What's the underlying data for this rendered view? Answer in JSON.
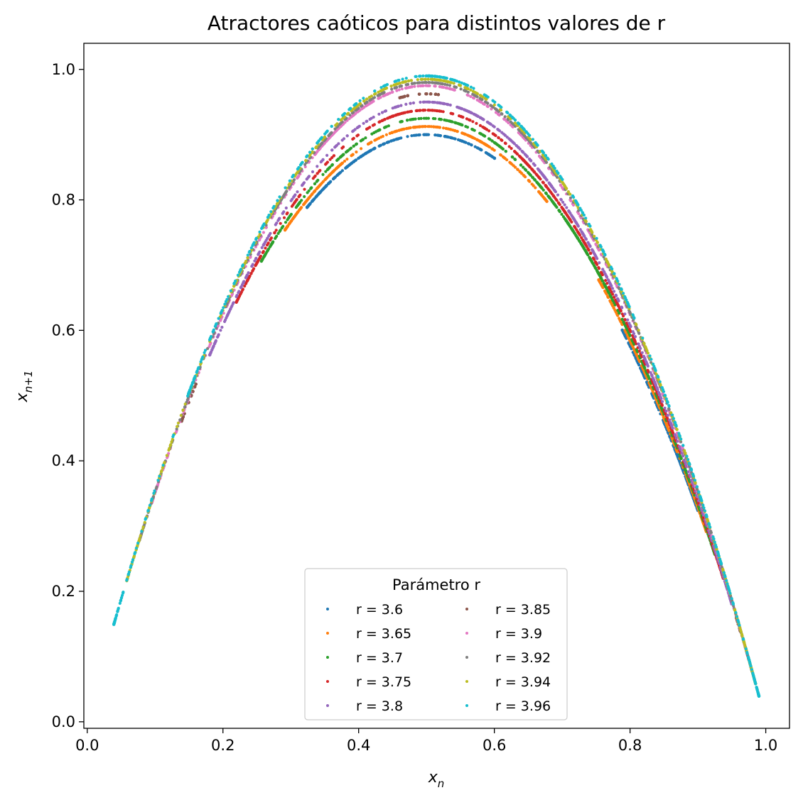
{
  "chart_data": {
    "type": "scatter",
    "title": "Atractores caóticos para distintos valores de r",
    "xlabel": "x_n",
    "ylabel": "x_{n+1}",
    "xlim": [
      -0.005,
      1.035
    ],
    "ylim": [
      -0.01,
      1.04
    ],
    "xticks": [
      "0.0",
      "0.2",
      "0.4",
      "0.6",
      "0.8",
      "1.0"
    ],
    "yticks": [
      "0.0",
      "0.2",
      "0.4",
      "0.6",
      "0.8",
      "1.0"
    ],
    "grid": false,
    "legend": {
      "title": "Parámetro r",
      "placement": "lower center",
      "columns": 2
    },
    "series": [
      {
        "name": "r = 3.6",
        "r": 3.6,
        "color": "#1f77b4",
        "x_range": [
          0.326,
          0.601
        ]
      },
      {
        "name": "r = 3.65",
        "r": 3.65,
        "color": "#ff7f0e",
        "x_range": [
          0.293,
          0.679
        ]
      },
      {
        "name": "r = 3.7",
        "r": 3.7,
        "color": "#2ca02c",
        "x_range": [
          0.258,
          0.732
        ]
      },
      {
        "name": "r = 3.75",
        "r": 3.75,
        "color": "#d62728",
        "x_range": [
          0.222,
          0.771
        ]
      },
      {
        "name": "r = 3.8",
        "r": 3.8,
        "color": "#9467bd",
        "x_range": [
          0.181,
          0.8
        ]
      },
      {
        "name": "r = 3.85",
        "r": 3.85,
        "color": "#8c564b",
        "x_range": [
          0.14,
          0.962
        ]
      },
      {
        "name": "r = 3.9",
        "r": 3.9,
        "color": "#e377c2",
        "x_range": [
          0.1,
          0.975
        ]
      },
      {
        "name": "r = 3.92",
        "r": 3.92,
        "color": "#7f7f7f",
        "x_range": [
          0.08,
          0.98
        ]
      },
      {
        "name": "r = 3.94",
        "r": 3.94,
        "color": "#bcbd22",
        "x_range": [
          0.06,
          0.985
        ]
      },
      {
        "name": "r = 3.96",
        "r": 3.96,
        "color": "#17becf",
        "x_range": [
          0.04,
          0.99
        ]
      }
    ]
  }
}
